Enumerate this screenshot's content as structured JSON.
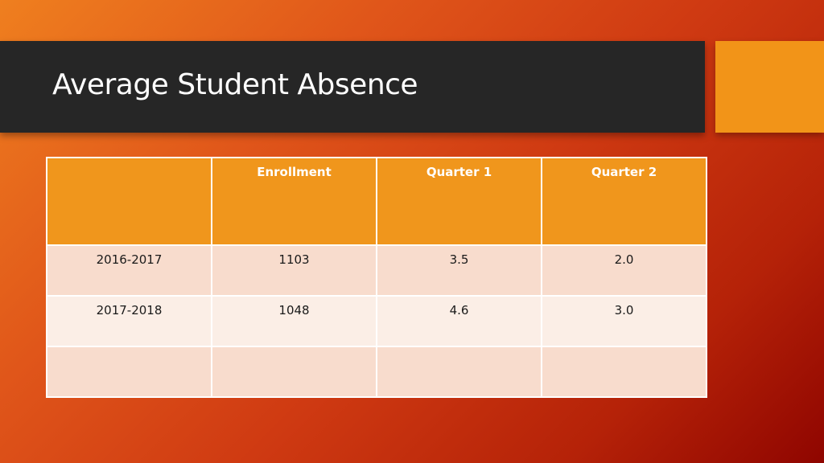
{
  "slide": {
    "title": "Average Student Absence"
  },
  "table": {
    "headers": [
      "",
      "Enrollment",
      "Quarter 1",
      "Quarter 2"
    ],
    "rows": [
      [
        "2016-2017",
        "1103",
        "3.5",
        "2.0"
      ],
      [
        "2017-2018",
        "1048",
        "4.6",
        "3.0"
      ],
      [
        "",
        "",
        "",
        ""
      ]
    ]
  },
  "colors": {
    "title_bar": "#262626",
    "accent": "#f29418",
    "header_fill": "#f0961c",
    "row_fill_a": "#f8dccd",
    "row_fill_b": "#fbeee6"
  }
}
